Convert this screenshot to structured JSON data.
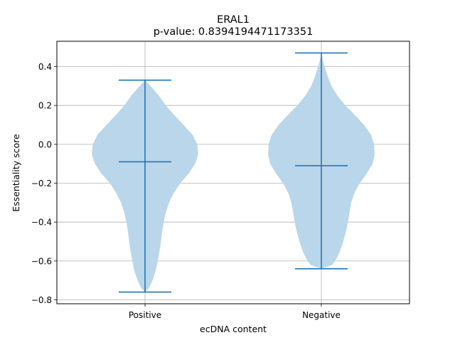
{
  "chart_data": {
    "type": "violin",
    "title": "ERAL1",
    "subtitle": "p-value: 0.8394194471173351",
    "xlabel": "ecDNA content",
    "ylabel": "Essentiality score",
    "categories": [
      "Positive",
      "Negative"
    ],
    "ylim": [
      -0.82,
      0.53
    ],
    "yticks": [
      -0.8,
      -0.6,
      -0.4,
      -0.2,
      0.0,
      0.2,
      0.4
    ],
    "ytick_labels": [
      "−0.8",
      "−0.6",
      "−0.4",
      "−0.2",
      "0.0",
      "0.2",
      "0.4"
    ],
    "grid": true,
    "colors": {
      "body": "#bad6ea",
      "stroke": "#1f77b4",
      "grid": "#b0b0b0",
      "axis": "#000000"
    },
    "violins": [
      {
        "category": "Positive",
        "min": -0.76,
        "max": 0.33,
        "median": -0.09,
        "density": [
          [
            0.33,
            0.0
          ],
          [
            0.3,
            0.1
          ],
          [
            0.25,
            0.26
          ],
          [
            0.2,
            0.39
          ],
          [
            0.15,
            0.55
          ],
          [
            0.1,
            0.72
          ],
          [
            0.05,
            0.89
          ],
          [
            0.0,
            0.98
          ],
          [
            -0.05,
            1.0
          ],
          [
            -0.1,
            0.94
          ],
          [
            -0.15,
            0.82
          ],
          [
            -0.2,
            0.66
          ],
          [
            -0.25,
            0.54
          ],
          [
            -0.3,
            0.45
          ],
          [
            -0.35,
            0.39
          ],
          [
            -0.4,
            0.35
          ],
          [
            -0.45,
            0.32
          ],
          [
            -0.5,
            0.3
          ],
          [
            -0.55,
            0.27
          ],
          [
            -0.6,
            0.24
          ],
          [
            -0.65,
            0.2
          ],
          [
            -0.7,
            0.14
          ],
          [
            -0.74,
            0.07
          ],
          [
            -0.76,
            0.0
          ]
        ]
      },
      {
        "category": "Negative",
        "min": -0.64,
        "max": 0.47,
        "median": -0.11,
        "density": [
          [
            0.47,
            0.0
          ],
          [
            0.43,
            0.03
          ],
          [
            0.4,
            0.06
          ],
          [
            0.35,
            0.12
          ],
          [
            0.3,
            0.19
          ],
          [
            0.25,
            0.3
          ],
          [
            0.2,
            0.45
          ],
          [
            0.15,
            0.63
          ],
          [
            0.1,
            0.8
          ],
          [
            0.05,
            0.93
          ],
          [
            0.0,
            0.99
          ],
          [
            -0.05,
            1.0
          ],
          [
            -0.1,
            0.96
          ],
          [
            -0.15,
            0.85
          ],
          [
            -0.2,
            0.72
          ],
          [
            -0.25,
            0.62
          ],
          [
            -0.3,
            0.56
          ],
          [
            -0.35,
            0.53
          ],
          [
            -0.4,
            0.5
          ],
          [
            -0.45,
            0.46
          ],
          [
            -0.5,
            0.41
          ],
          [
            -0.55,
            0.35
          ],
          [
            -0.6,
            0.26
          ],
          [
            -0.62,
            0.2
          ],
          [
            -0.64,
            0.0
          ]
        ]
      }
    ]
  }
}
